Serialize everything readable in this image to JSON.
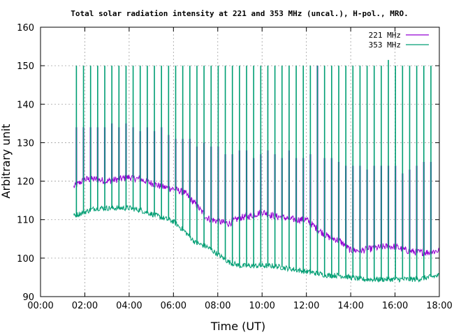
{
  "chart_data": {
    "type": "line",
    "title": "Total solar radiation intensity at 221 and 353 MHz (uncal.), H-pol., MRO.",
    "xlabel": "Time (UT)",
    "ylabel": "Arbitrary unit",
    "xlim": [
      0,
      18
    ],
    "ylim": [
      90,
      160
    ],
    "x_ticks": [
      "00:00",
      "02:00",
      "04:00",
      "06:00",
      "08:00",
      "10:00",
      "12:00",
      "14:00",
      "16:00",
      "18:00"
    ],
    "y_ticks": [
      "90",
      "100",
      "110",
      "120",
      "130",
      "140",
      "150",
      "160"
    ],
    "grid": true,
    "legend_position": "top-right",
    "series": [
      {
        "name": "221 MHz",
        "color": "#9400d3",
        "x": [
          1.5,
          2.0,
          2.5,
          3.0,
          3.5,
          4.0,
          4.5,
          5.0,
          5.5,
          6.0,
          6.5,
          7.0,
          7.5,
          8.0,
          8.5,
          9.0,
          9.5,
          10.0,
          10.5,
          11.0,
          11.5,
          12.0,
          12.5,
          13.0,
          13.5,
          14.0,
          14.5,
          15.0,
          15.5,
          16.0,
          16.5,
          17.0,
          17.5,
          18.0
        ],
        "y": [
          118.5,
          120.5,
          120.5,
          120.0,
          120.5,
          121.0,
          120.5,
          119.5,
          118.5,
          118.0,
          117.0,
          114.0,
          110.5,
          109.5,
          109.0,
          110.5,
          111.0,
          112.0,
          111.0,
          110.5,
          110.0,
          110.0,
          107.5,
          105.5,
          104.5,
          102.0,
          102.0,
          102.5,
          103.0,
          103.0,
          102.0,
          101.5,
          101.5,
          102.0
        ],
        "spikes_x": [
          1.62,
          1.94,
          2.26,
          2.58,
          2.9,
          3.22,
          3.54,
          3.86,
          4.18,
          4.5,
          4.82,
          5.14,
          5.46,
          5.78,
          6.1,
          6.42,
          6.74,
          7.06,
          7.38,
          7.7,
          8.02,
          8.34,
          8.66,
          8.98,
          9.3,
          9.62,
          9.94,
          10.26,
          10.58,
          10.9,
          11.22,
          11.54,
          11.86,
          12.18,
          12.5,
          12.82,
          13.14,
          13.46,
          13.78,
          14.1,
          14.42,
          14.74,
          15.06,
          15.38,
          15.7,
          16.02,
          16.34,
          16.66,
          16.98,
          17.3,
          17.62
        ],
        "spikes_top": [
          134,
          134,
          134,
          134,
          134,
          135,
          134,
          135,
          134,
          133,
          134,
          133,
          134,
          132,
          131,
          131,
          131,
          129,
          130,
          129,
          129,
          127,
          127,
          128,
          128,
          126,
          127,
          128,
          127,
          126,
          128,
          126,
          126,
          127,
          150,
          126,
          126,
          125,
          124,
          124,
          124,
          123,
          124,
          124,
          124,
          124,
          122,
          123,
          124,
          125,
          125
        ]
      },
      {
        "name": "353 MHz",
        "color": "#009e73",
        "x": [
          1.5,
          2.0,
          2.5,
          3.0,
          3.5,
          4.0,
          4.5,
          5.0,
          5.5,
          6.0,
          6.5,
          7.0,
          7.5,
          8.0,
          8.5,
          9.0,
          9.5,
          10.0,
          10.5,
          11.0,
          11.5,
          12.0,
          12.5,
          13.0,
          13.5,
          14.0,
          14.5,
          15.0,
          15.5,
          16.0,
          16.5,
          17.0,
          17.5,
          18.0
        ],
        "y": [
          111.0,
          112.0,
          113.0,
          113.0,
          113.0,
          113.0,
          112.5,
          111.5,
          110.5,
          109.5,
          107.0,
          104.0,
          103.0,
          101.0,
          99.0,
          98.0,
          98.0,
          98.0,
          98.0,
          97.5,
          97.0,
          96.5,
          96.0,
          95.5,
          95.5,
          95.0,
          94.5,
          94.5,
          94.5,
          94.5,
          94.5,
          94.5,
          95.0,
          95.5
        ],
        "spikes_x": [
          1.62,
          1.94,
          2.26,
          2.58,
          2.9,
          3.22,
          3.54,
          3.86,
          4.18,
          4.5,
          4.82,
          5.14,
          5.46,
          5.78,
          6.1,
          6.42,
          6.74,
          7.06,
          7.38,
          7.7,
          8.02,
          8.34,
          8.66,
          8.98,
          9.3,
          9.62,
          9.94,
          10.26,
          10.58,
          10.9,
          11.22,
          11.54,
          11.86,
          12.18,
          12.5,
          12.82,
          13.14,
          13.46,
          13.78,
          14.1,
          14.42,
          14.74,
          15.06,
          15.38,
          15.7,
          16.02,
          16.34,
          16.66,
          16.98,
          17.3,
          17.62
        ],
        "spikes_top": [
          150,
          150,
          150,
          150,
          150,
          150,
          150,
          150,
          150,
          150,
          150,
          150,
          150,
          150,
          150,
          150,
          150,
          150,
          150,
          150,
          150,
          150,
          150,
          150,
          150,
          150,
          150,
          150,
          150,
          150,
          150,
          150,
          150,
          150,
          150,
          150,
          150,
          150,
          150,
          150,
          150,
          150,
          150,
          150,
          151.5,
          150,
          150,
          150,
          150,
          150,
          150
        ]
      }
    ]
  }
}
